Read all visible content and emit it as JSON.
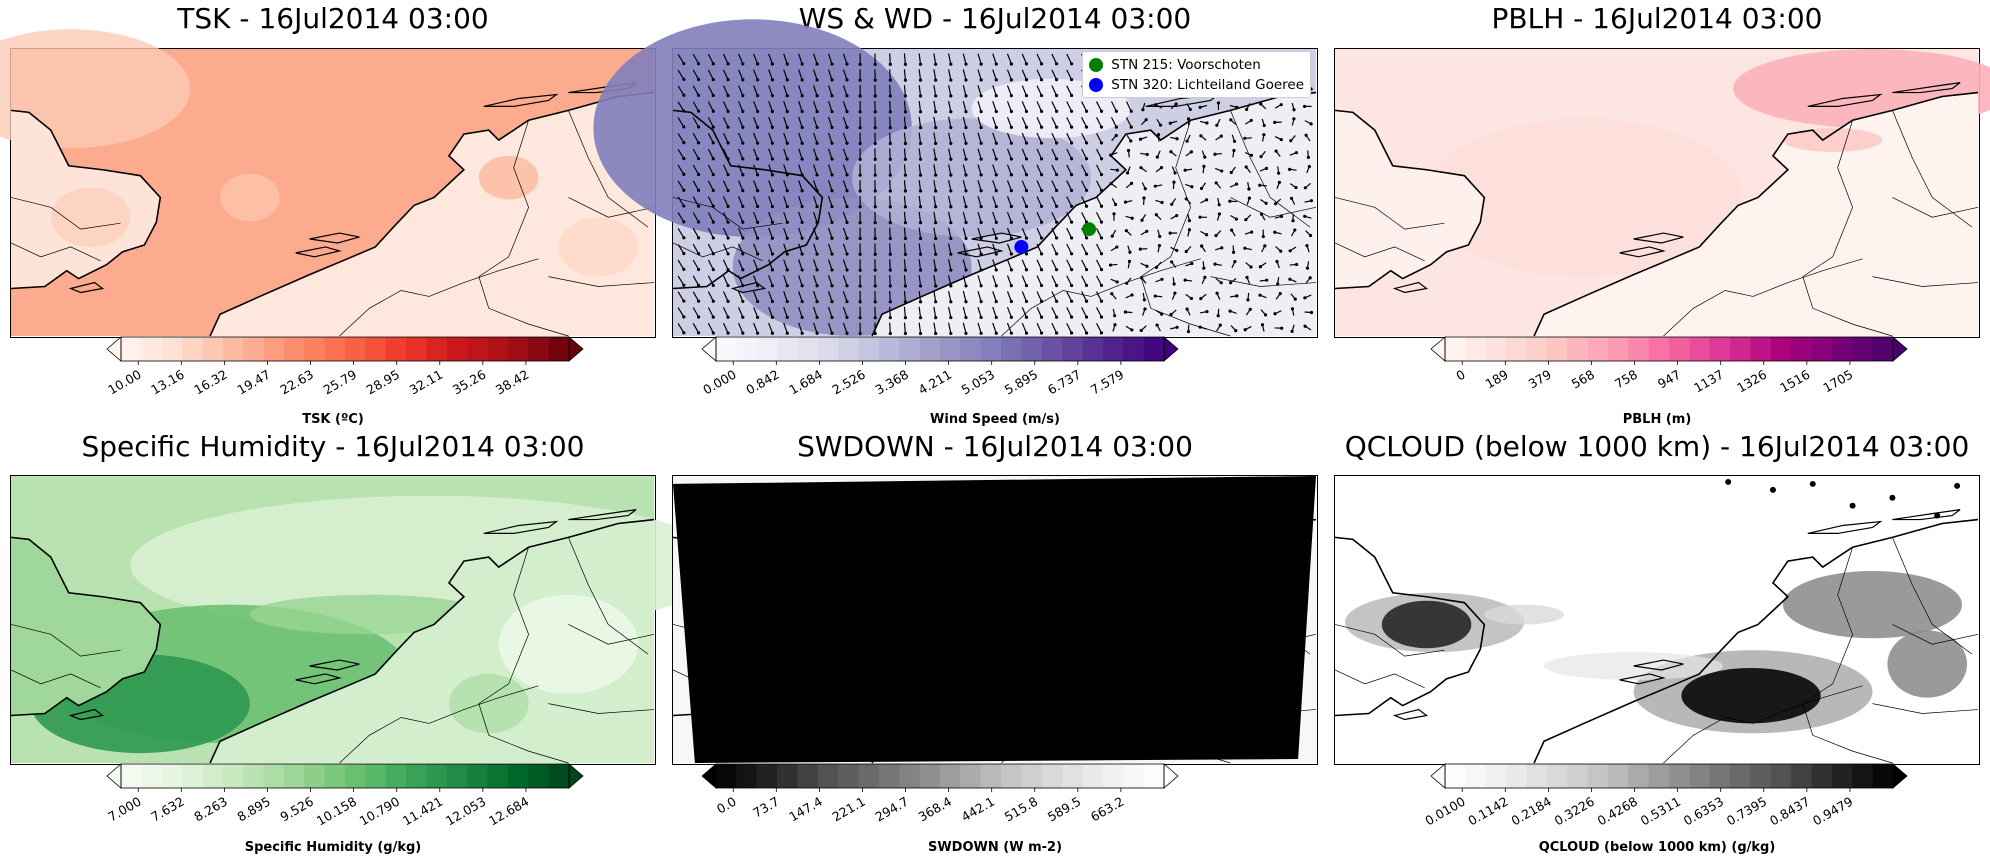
{
  "chart_data": [
    {
      "type": "heatmap",
      "title": "TSK - 16Jul2014 03:00",
      "colorbar_label": "TSK (ºC)",
      "ticks": [
        "10.00",
        "13.16",
        "16.32",
        "19.47",
        "22.63",
        "25.79",
        "28.95",
        "32.11",
        "35.26",
        "38.42"
      ],
      "colormap": [
        "#fff5f0",
        "#fee0d2",
        "#fcbba1",
        "#fc9272",
        "#fb6a4a",
        "#ef3b2c",
        "#cb181d",
        "#a50f15",
        "#67000d"
      ]
    },
    {
      "type": "heatmap",
      "title": "WS & WD - 16Jul2014 03:00",
      "colorbar_label": "Wind Speed (m/s)",
      "ticks": [
        "0.000",
        "0.842",
        "1.684",
        "2.526",
        "3.368",
        "4.211",
        "5.053",
        "5.895",
        "6.737",
        "7.579"
      ],
      "colormap": [
        "#fcfbfd",
        "#efedf5",
        "#dadaeb",
        "#bcbddc",
        "#9e9ac8",
        "#807dba",
        "#6a51a3",
        "#54278f",
        "#3f007d"
      ],
      "legend": [
        {
          "label": "STN 215: Voorschoten",
          "color": "#008000"
        },
        {
          "label": "STN 320: Lichteiland Goeree",
          "color": "#0000ff"
        }
      ]
    },
    {
      "type": "heatmap",
      "title": "PBLH - 16Jul2014 03:00",
      "colorbar_label": "PBLH (m)",
      "ticks": [
        "0",
        "189",
        "379",
        "568",
        "758",
        "947",
        "1137",
        "1326",
        "1516",
        "1705"
      ],
      "colormap": [
        "#fff7f3",
        "#fde0dd",
        "#fcc5c0",
        "#fa9fb5",
        "#f768a1",
        "#dd3497",
        "#ae017e",
        "#7a0177",
        "#49006a"
      ]
    },
    {
      "type": "heatmap",
      "title": "Specific Humidity - 16Jul2014 03:00",
      "colorbar_label": "Specific Humidity (g/kg)",
      "ticks": [
        "7.000",
        "7.632",
        "8.263",
        "8.895",
        "9.526",
        "10.158",
        "10.790",
        "11.421",
        "12.053",
        "12.684"
      ],
      "colormap": [
        "#f7fcf5",
        "#e5f5e0",
        "#c7e9c0",
        "#a1d99b",
        "#74c476",
        "#41ab5d",
        "#238b45",
        "#006d2c",
        "#00441b"
      ]
    },
    {
      "type": "heatmap",
      "title": "SWDOWN - 16Jul2014 03:00",
      "colorbar_label": "SWDOWN (W m-2)",
      "ticks": [
        "0.0",
        "73.7",
        "147.4",
        "221.1",
        "294.7",
        "368.4",
        "442.1",
        "515.8",
        "589.5",
        "663.2"
      ],
      "colormap": [
        "#000000",
        "#252525",
        "#525252",
        "#737373",
        "#969696",
        "#bdbdbd",
        "#d9d9d9",
        "#f0f0f0",
        "#ffffff"
      ]
    },
    {
      "type": "heatmap",
      "title": "QCLOUD (below 1000 km) - 16Jul2014 03:00",
      "colorbar_label": "QCLOUD (below 1000 km) (g/kg)",
      "ticks": [
        "0.0100",
        "0.1142",
        "0.2184",
        "0.3226",
        "0.4268",
        "0.5311",
        "0.6353",
        "0.7395",
        "0.8437",
        "0.9479"
      ],
      "colormap": [
        "#ffffff",
        "#f0f0f0",
        "#d9d9d9",
        "#bdbdbd",
        "#969696",
        "#737373",
        "#525252",
        "#252525",
        "#000000"
      ]
    }
  ]
}
